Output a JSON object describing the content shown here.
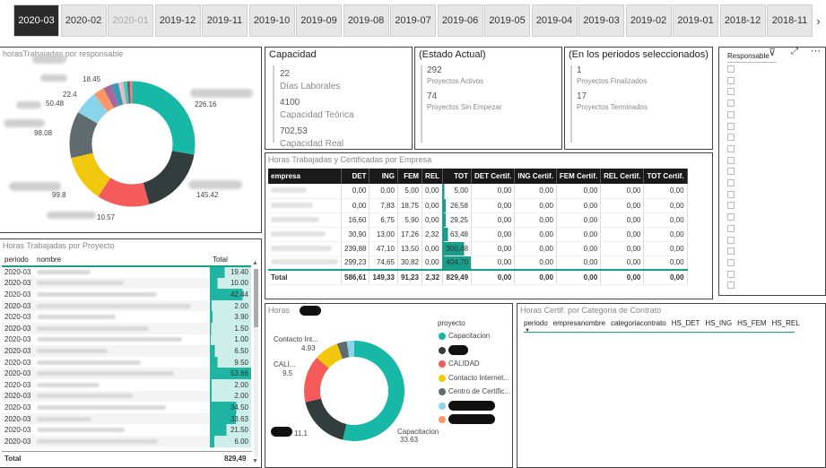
{
  "tabs": [
    {
      "label": "2020-03",
      "state": "selected"
    },
    {
      "label": "2020-02",
      "state": ""
    },
    {
      "label": "2020-01",
      "state": "dim"
    },
    {
      "label": "2019-12",
      "state": ""
    },
    {
      "label": "2019-11",
      "state": ""
    },
    {
      "label": "2019-10",
      "state": ""
    },
    {
      "label": "2019-09",
      "state": ""
    },
    {
      "label": "2019-08",
      "state": ""
    },
    {
      "label": "2019-07",
      "state": ""
    },
    {
      "label": "2019-06",
      "state": ""
    },
    {
      "label": "2019-05",
      "state": ""
    },
    {
      "label": "2019-04",
      "state": ""
    },
    {
      "label": "2019-03",
      "state": ""
    },
    {
      "label": "2019-02",
      "state": ""
    },
    {
      "label": "2019-01",
      "state": ""
    },
    {
      "label": "2018-12",
      "state": ""
    },
    {
      "label": "2018-11",
      "state": ""
    }
  ],
  "tab_next_icon": "chevron-right-icon",
  "donut1": {
    "title": "horasTrabajadas por responsable",
    "labels": {
      "a": "18.45",
      "b": "22.4",
      "c": "50.48",
      "d": "98.08",
      "e": "99.8",
      "f": "10.57",
      "g": "145.42",
      "h": "226.16"
    },
    "segments": [
      {
        "value": 226.16,
        "color": "#17b8a6"
      },
      {
        "value": 145.42,
        "color": "#333d3d"
      },
      {
        "value": 110,
        "color": "#f55b5b"
      },
      {
        "value": 99.8,
        "color": "#f2c80f"
      },
      {
        "value": 98.08,
        "color": "#5f6b6d"
      },
      {
        "value": 50.48,
        "color": "#8ad4eb"
      },
      {
        "value": 22.4,
        "color": "#fe9666"
      },
      {
        "value": 18.45,
        "color": "#a66999"
      },
      {
        "value": 14,
        "color": "#3599b8"
      },
      {
        "value": 10.57,
        "color": "#dfbfbf"
      },
      {
        "value": 8,
        "color": "#4ac5bb"
      },
      {
        "value": 6,
        "color": "#5f6b6d"
      },
      {
        "value": 5,
        "color": "#fb8281"
      }
    ]
  },
  "capacidad": {
    "title": "Capacidad",
    "items": [
      {
        "value": "22",
        "caption": "Días Laborales"
      },
      {
        "value": "4100",
        "caption": "Capacidad Teórica"
      },
      {
        "value": "702,53",
        "caption": "Capacidad Real"
      }
    ]
  },
  "estado": {
    "title": "(Estado Actual)",
    "items": [
      {
        "value": "292",
        "caption": "Proyectos Activos"
      },
      {
        "value": "74",
        "caption": "Proyectos Sin Empezar"
      }
    ]
  },
  "periodos": {
    "title": "(En los periodos seleccionados)",
    "items": [
      {
        "value": "1",
        "caption": "Proyectos Finalizados"
      },
      {
        "value": "17",
        "caption": "Proyectos Terminados"
      }
    ]
  },
  "empresa_table": {
    "title": "Horas Trabajadas y Certificadas por Empresa",
    "headers": [
      "empresa",
      "DET",
      "ING",
      "FEM",
      "REL",
      "TOT",
      "DET Certif.",
      "ING Certif.",
      "FEM Certif.",
      "REL Certif.",
      "TOT Certif."
    ],
    "rows": [
      [
        "",
        "0,00",
        "0,00",
        "5,00",
        "0,00",
        "5,00",
        "0,00",
        "0,00",
        "0,00",
        "0,00",
        "0,00"
      ],
      [
        "",
        "0,00",
        "7,83",
        "18,75",
        "0,00",
        "26,58",
        "0,00",
        "0,00",
        "0,00",
        "0,00",
        "0,00"
      ],
      [
        "",
        "16,60",
        "6,75",
        "5,90",
        "0,00",
        "29,25",
        "0,00",
        "0,00",
        "0,00",
        "0,00",
        "0,00"
      ],
      [
        "",
        "30,90",
        "13,00",
        "17,26",
        "2,32",
        "63,48",
        "0,00",
        "0,00",
        "0,00",
        "0,00",
        "0,00"
      ],
      [
        "",
        "239,88",
        "47,10",
        "13,50",
        "0,00",
        "300,48",
        "0,00",
        "0,00",
        "0,00",
        "0,00",
        "0,00"
      ],
      [
        "",
        "299,23",
        "74,65",
        "30,82",
        "0,00",
        "404,70",
        "0,00",
        "0,00",
        "0,00",
        "0,00",
        "0,00"
      ]
    ],
    "tot_fraction": [
      0.012,
      0.066,
      0.072,
      0.157,
      0.742,
      1.0
    ],
    "total": [
      "Total",
      "586,61",
      "149,33",
      "91,23",
      "2,32",
      "829,49",
      "0,00",
      "0,00",
      "0,00",
      "0,00",
      "0,00"
    ]
  },
  "responsable": {
    "title": "Responsable",
    "icons": [
      "filter-icon",
      "expand-icon",
      "more-options-icon"
    ],
    "rows": 20
  },
  "proyecto_table": {
    "title": "Horas Trabajadas por Proyecto",
    "headers": [
      "periodo",
      "nombre",
      "Total"
    ],
    "rows": [
      {
        "periodo": "2020-03",
        "total": "19.40",
        "frac": 0.36
      },
      {
        "periodo": "2020-03",
        "total": "10.00",
        "frac": 0.19
      },
      {
        "periodo": "2020-03",
        "total": "42.44",
        "frac": 0.79
      },
      {
        "periodo": "2020-03",
        "total": "2.00",
        "frac": 0.04
      },
      {
        "periodo": "2020-03",
        "total": "3.90",
        "frac": 0.07
      },
      {
        "periodo": "2020-03",
        "total": "1.50",
        "frac": 0.03
      },
      {
        "periodo": "2020-03",
        "total": "1.00",
        "frac": 0.02
      },
      {
        "periodo": "2020-03",
        "total": "6.50",
        "frac": 0.12
      },
      {
        "periodo": "2020-03",
        "total": "9.50",
        "frac": 0.18
      },
      {
        "periodo": "2020-03",
        "total": "53.66",
        "frac": 1.0
      },
      {
        "periodo": "2020-03",
        "total": "2.00",
        "frac": 0.04
      },
      {
        "periodo": "2020-03",
        "total": "2.00",
        "frac": 0.04
      },
      {
        "periodo": "2020-03",
        "total": "34.50",
        "frac": 0.64
      },
      {
        "periodo": "2020-03",
        "total": "33.63",
        "frac": 0.63
      },
      {
        "periodo": "2020-03",
        "total": "21.50",
        "frac": 0.4
      },
      {
        "periodo": "2020-03",
        "total": "6.00",
        "frac": 0.11
      }
    ],
    "total_label": "Total",
    "total_value": "829,49"
  },
  "donut2": {
    "title": "Horas",
    "legend_title": "proyecto",
    "legend": [
      {
        "label": "Capacitacion",
        "color": "#17b8a6"
      },
      {
        "label": "",
        "color": "#333d3d"
      },
      {
        "label": "CALIDAD",
        "color": "#f55b5b"
      },
      {
        "label": "Contacto Internet...",
        "color": "#f2c80f"
      },
      {
        "label": "Centro de Certific...",
        "color": "#5f6b6d"
      },
      {
        "label": "",
        "color": "#8ad4eb"
      },
      {
        "label": "",
        "color": "#fe9666"
      }
    ],
    "labels": {
      "contacto": "Contacto Int...",
      "contacto_val": "4.93",
      "cali": "CALI...",
      "cali_val": "9.5",
      "dark_val": "11.1",
      "cap": "Capacitacion",
      "cap_val": "33.63"
    },
    "segments": [
      {
        "value": 33.63,
        "color": "#17b8a6"
      },
      {
        "value": 11.1,
        "color": "#333d3d"
      },
      {
        "value": 9.5,
        "color": "#f55b5b"
      },
      {
        "value": 4.93,
        "color": "#f2c80f"
      },
      {
        "value": 2.0,
        "color": "#5f6b6d"
      },
      {
        "value": 1.5,
        "color": "#8ad4eb"
      }
    ]
  },
  "certif": {
    "title": "Horas Certif. por Categoria de Contrato",
    "headers": [
      "periodo",
      "empresanombre",
      "categoriacontrato",
      "HS_DET",
      "HS_ING",
      "HS_FEM",
      "HS_REL"
    ]
  }
}
